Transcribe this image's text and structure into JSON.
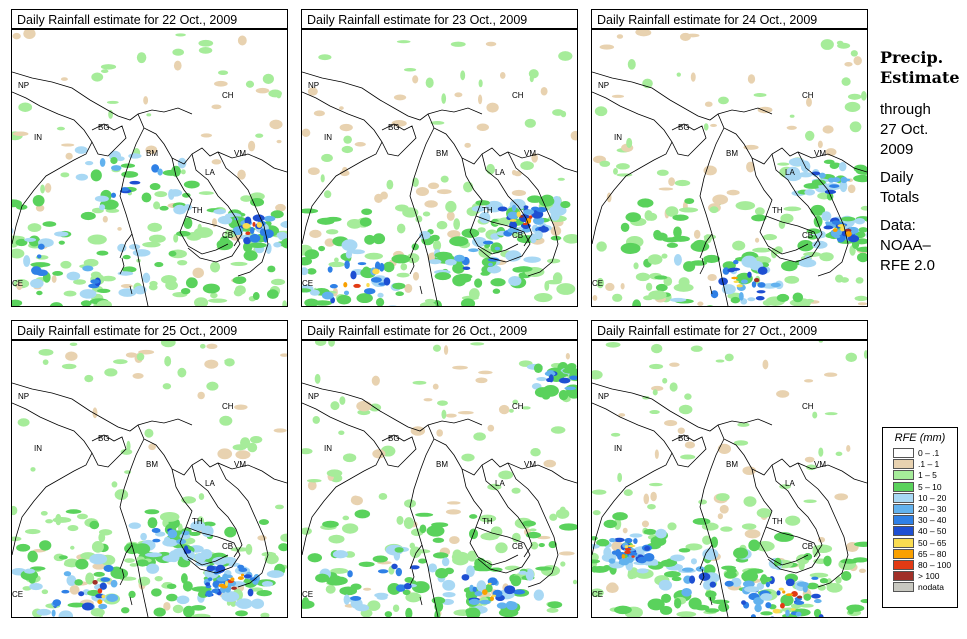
{
  "panels": [
    {
      "title": "Daily Rainfall estimate for  22 Oct., 2009",
      "date": "22 Oct., 2009"
    },
    {
      "title": "Daily Rainfall estimate for  23 Oct., 2009",
      "date": "23 Oct., 2009"
    },
    {
      "title": "Daily Rainfall estimate for  24 Oct., 2009",
      "date": "24 Oct., 2009"
    },
    {
      "title": "Daily Rainfall estimate for  25 Oct., 2009",
      "date": "25 Oct., 2009"
    },
    {
      "title": "Daily Rainfall estimate for  26 Oct., 2009",
      "date": "26 Oct., 2009"
    },
    {
      "title": "Daily Rainfall estimate for  27 Oct., 2009",
      "date": "27 Oct., 2009"
    }
  ],
  "country_labels": [
    "NP",
    "CH",
    "IN",
    "BG",
    "BM",
    "VM",
    "LA",
    "TH",
    "CB",
    "CE"
  ],
  "side": {
    "title_line1": "Precip.",
    "title_line2": "Estimate",
    "through": "through",
    "date_line1": "27 Oct.",
    "date_line2": "2009",
    "daily1": "Daily",
    "daily2": "Totals",
    "data1": "Data:",
    "data2": "NOAA–",
    "data3": "RFE 2.0"
  },
  "legend": {
    "title": "RFE (mm)",
    "items": [
      {
        "label": "0 – .1",
        "color": "#ffffff"
      },
      {
        "label": ".1 – 1",
        "color": "#e8d2b0"
      },
      {
        "label": "1 – 5",
        "color": "#a6ec9a"
      },
      {
        "label": "5 – 10",
        "color": "#5ad25c"
      },
      {
        "label": "10 – 20",
        "color": "#a8d8f4"
      },
      {
        "label": "20 – 30",
        "color": "#62b2ee"
      },
      {
        "label": "30 – 40",
        "color": "#2f80e6"
      },
      {
        "label": "40 – 50",
        "color": "#1e4fd2"
      },
      {
        "label": "50 – 65",
        "color": "#fadc50"
      },
      {
        "label": "65 – 80",
        "color": "#f9a000"
      },
      {
        "label": "80 – 100",
        "color": "#e23a14"
      },
      {
        "label": "> 100",
        "color": "#a03028"
      },
      {
        "label": "nodata",
        "color": "#c8c8c0"
      }
    ]
  }
}
